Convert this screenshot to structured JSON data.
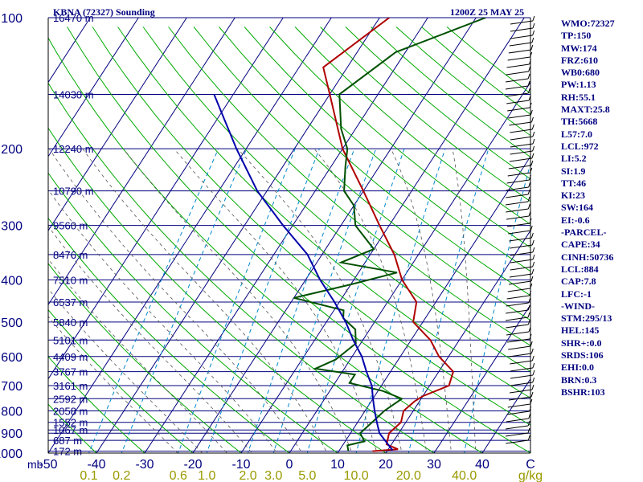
{
  "header": {
    "station_title": "KBNA (72327) Sounding",
    "time_title": "1200Z 25 MAY 25"
  },
  "stats": [
    "WMO:72327",
    "TP:150",
    "MW:174",
    "FRZ:610",
    "WB0:680",
    "PW:1.13",
    "RH:55.1",
    "MAXT:25.8",
    "TH:5668",
    "L57:7.0",
    "LCL:972",
    "LI:5.2",
    "SI:1.9",
    "TT:46",
    "KI:23",
    "SW:164",
    "EI:-0.6",
    "-PARCEL-",
    "CAPE:34",
    "CINH:50736",
    "LCL:884",
    "CAP:7.8",
    "LFC:-1",
    "-WIND-",
    "STM:295/13",
    "HEL:145",
    "SHR+:0.0",
    "SRDS:106",
    "EHI:0.0",
    "BRN:0.3",
    "BSHR:103"
  ],
  "chart_data": {
    "type": "line",
    "title": "KBNA (72327) Sounding",
    "xlabel": "C",
    "ylabel": "mb",
    "x_ticks": [
      -50,
      -40,
      -30,
      -20,
      -10,
      0,
      10,
      20,
      30,
      40
    ],
    "x_tick_labels": [
      "-50",
      "-40",
      "-30",
      "-20",
      "-10",
      "0",
      "10",
      "20",
      "30",
      "40"
    ],
    "x_unit_label": "C",
    "y_unit_label": "mb",
    "xlim": [
      -50,
      50
    ],
    "ylim": [
      1000,
      100
    ],
    "y_scale": "log",
    "pressure_ticks": [
      1000,
      900,
      800,
      700,
      600,
      500,
      400,
      300,
      200,
      100
    ],
    "height_levels": [
      {
        "p": 990,
        "label": "172 m"
      },
      {
        "p": 935,
        "label": "687 m"
      },
      {
        "p": 885,
        "label": "1067 m"
      },
      {
        "p": 850,
        "label": "1552 m"
      },
      {
        "p": 800,
        "label": "2058 m"
      },
      {
        "p": 750,
        "label": "2592 m"
      },
      {
        "p": 700,
        "label": "3161 m"
      },
      {
        "p": 650,
        "label": "3767 m"
      },
      {
        "p": 600,
        "label": "4409 m"
      },
      {
        "p": 550,
        "label": "5101 m"
      },
      {
        "p": 500,
        "label": "5840 m"
      },
      {
        "p": 450,
        "label": "6537 m"
      },
      {
        "p": 400,
        "label": "7510 m"
      },
      {
        "p": 350,
        "label": "8476 m"
      },
      {
        "p": 300,
        "label": "9560 m"
      },
      {
        "p": 250,
        "label": "10790 m"
      },
      {
        "p": 200,
        "label": "12240 m"
      },
      {
        "p": 150,
        "label": "14030 m"
      },
      {
        "p": 100,
        "label": "16470 m"
      }
    ],
    "mixing_ratio_labels": [
      "0.1",
      "0.2",
      "0.6",
      "1.0",
      "2.0",
      "3.0",
      "5.0",
      "10.0",
      "20.0",
      "40.0",
      "g/kg"
    ],
    "mixing_ratios": [
      0.1,
      0.2,
      0.6,
      1.0,
      2.0,
      3.0,
      5.0,
      10.0,
      20.0,
      40.0
    ],
    "series": [
      {
        "key": "temperature",
        "color": "#b00000",
        "points": [
          [
            17,
            990
          ],
          [
            22,
            980
          ],
          [
            19,
            955
          ],
          [
            18,
            900
          ],
          [
            19,
            850
          ],
          [
            18,
            800
          ],
          [
            19,
            760
          ],
          [
            20,
            740
          ],
          [
            24,
            700
          ],
          [
            23,
            650
          ],
          [
            18,
            600
          ],
          [
            14,
            550
          ],
          [
            8,
            500
          ],
          [
            6,
            450
          ],
          [
            0,
            400
          ],
          [
            -5,
            350
          ],
          [
            -12,
            300
          ],
          [
            -20,
            250
          ],
          [
            -30,
            200
          ],
          [
            -40,
            150
          ],
          [
            -45,
            130
          ],
          [
            -38,
            100
          ]
        ]
      },
      {
        "key": "dewpoint",
        "color": "#005000",
        "points": [
          [
            12,
            990
          ],
          [
            11,
            960
          ],
          [
            14,
            940
          ],
          [
            12,
            900
          ],
          [
            13,
            850
          ],
          [
            14,
            800
          ],
          [
            16,
            750
          ],
          [
            11,
            720
          ],
          [
            3,
            690
          ],
          [
            3,
            660
          ],
          [
            -6,
            640
          ],
          [
            -3,
            610
          ],
          [
            -1,
            560
          ],
          [
            -3,
            520
          ],
          [
            -7,
            490
          ],
          [
            -8,
            470
          ],
          [
            -20,
            440
          ],
          [
            -10,
            410
          ],
          [
            -2,
            385
          ],
          [
            -15,
            365
          ],
          [
            -10,
            340
          ],
          [
            -17,
            300
          ],
          [
            -20,
            270
          ],
          [
            -24,
            250
          ],
          [
            -27,
            220
          ],
          [
            -29,
            200
          ],
          [
            -33,
            180
          ],
          [
            -38,
            150
          ],
          [
            -32,
            120
          ],
          [
            -18,
            100
          ]
        ]
      },
      {
        "key": "parcel",
        "color": "#0000aa",
        "points": [
          [
            21,
            985
          ],
          [
            16,
            900
          ],
          [
            14,
            850
          ],
          [
            12,
            800
          ],
          [
            10,
            750
          ],
          [
            8,
            700
          ],
          [
            5,
            650
          ],
          [
            2,
            600
          ],
          [
            -2,
            550
          ],
          [
            -6,
            500
          ],
          [
            -11,
            450
          ],
          [
            -17,
            400
          ],
          [
            -23,
            350
          ],
          [
            -32,
            300
          ],
          [
            -42,
            250
          ],
          [
            -52,
            200
          ],
          [
            -64,
            150
          ]
        ]
      }
    ],
    "grid": true,
    "legend": "none"
  }
}
